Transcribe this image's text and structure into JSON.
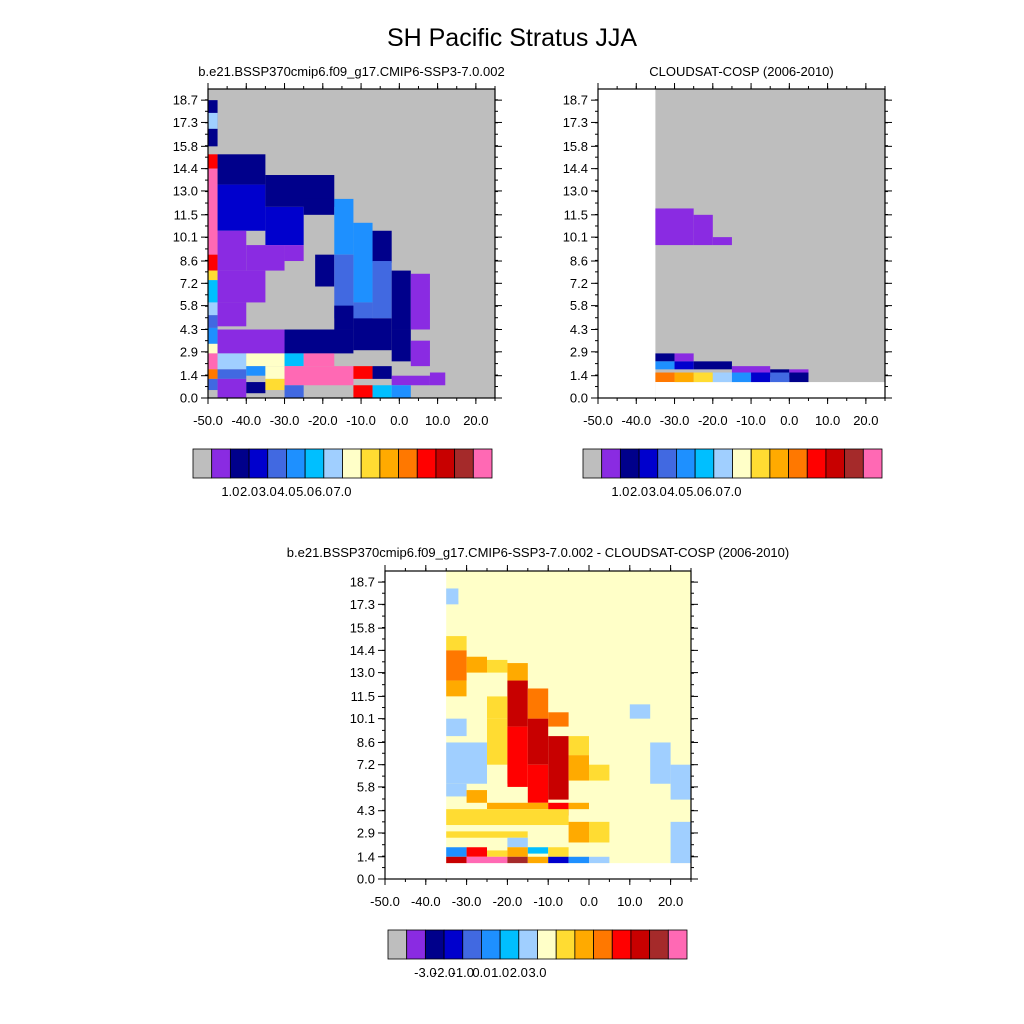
{
  "title": "SH Pacific Stratus JJA",
  "chart_data": [
    {
      "type": "heatmap",
      "title": "b.e21.BSSP370cmip6.f09_g17.CMIP6-SSP3-7.0.002",
      "xticks": [
        "-50.0",
        "-40.0",
        "-30.0",
        "-20.0",
        "-10.0",
        "0.0",
        "10.0",
        "20.0"
      ],
      "yticks": [
        "0.0",
        "1.4",
        "2.9",
        "4.3",
        "5.8",
        "7.2",
        "8.6",
        "10.1",
        "11.5",
        "13.0",
        "14.4",
        "15.8",
        "17.3",
        "18.7"
      ],
      "xlim": [
        -50,
        25
      ],
      "ylim": [
        0,
        19.4
      ],
      "background": "gray",
      "colorbar_labels": [
        "1.0",
        "2.0",
        "3.0",
        "4.0",
        "5.0",
        "6.0",
        "7.0"
      ],
      "colorbar_colors": [
        "#bebebe",
        "#8a2be2",
        "#00008b",
        "#0000cd",
        "#4169e1",
        "#1e90ff",
        "#00bfff",
        "#a0cfff",
        "#ffffc8",
        "#ffdc32",
        "#ffaa00",
        "#ff7800",
        "#ff0000",
        "#c80000",
        "#a52a2a",
        "#ff69b4"
      ]
    },
    {
      "type": "heatmap",
      "title": "CLOUDSAT-COSP (2006-2010)",
      "xticks": [
        "-50.0",
        "-40.0",
        "-30.0",
        "-20.0",
        "-10.0",
        "0.0",
        "10.0",
        "20.0"
      ],
      "yticks": [
        "0.0",
        "1.4",
        "2.9",
        "4.3",
        "5.8",
        "7.2",
        "8.6",
        "10.1",
        "11.5",
        "13.0",
        "14.4",
        "15.8",
        "17.3",
        "18.7"
      ],
      "xlim": [
        -50,
        25
      ],
      "ylim": [
        0,
        19.4
      ],
      "background": "gray",
      "colorbar_labels": [
        "1.0",
        "2.0",
        "3.0",
        "4.0",
        "5.0",
        "6.0",
        "7.0"
      ],
      "colorbar_colors": [
        "#bebebe",
        "#8a2be2",
        "#00008b",
        "#0000cd",
        "#4169e1",
        "#1e90ff",
        "#00bfff",
        "#a0cfff",
        "#ffffc8",
        "#ffdc32",
        "#ffaa00",
        "#ff7800",
        "#ff0000",
        "#c80000",
        "#a52a2a",
        "#ff69b4"
      ]
    },
    {
      "type": "heatmap",
      "title": "b.e21.BSSP370cmip6.f09_g17.CMIP6-SSP3-7.0.002 - CLOUDSAT-COSP (2006-2010)",
      "xticks": [
        "-50.0",
        "-40.0",
        "-30.0",
        "-20.0",
        "-10.0",
        "0.0",
        "10.0",
        "20.0"
      ],
      "yticks": [
        "0.0",
        "1.4",
        "2.9",
        "4.3",
        "5.8",
        "7.2",
        "8.6",
        "10.1",
        "11.5",
        "13.0",
        "14.4",
        "15.8",
        "17.3",
        "18.7"
      ],
      "xlim": [
        -50,
        25
      ],
      "ylim": [
        0,
        19.4
      ],
      "background": "light-yellow",
      "colorbar_labels": [
        "-3.0",
        "-2.0",
        "-1.0",
        "0.0",
        "1.0",
        "2.0",
        "3.0"
      ],
      "colorbar_colors": [
        "#bebebe",
        "#8a2be2",
        "#00008b",
        "#0000cd",
        "#4169e1",
        "#1e90ff",
        "#00bfff",
        "#a0cfff",
        "#ffffc8",
        "#ffdc32",
        "#ffaa00",
        "#ff7800",
        "#ff0000",
        "#c80000",
        "#a52a2a",
        "#ff69b4"
      ]
    }
  ]
}
